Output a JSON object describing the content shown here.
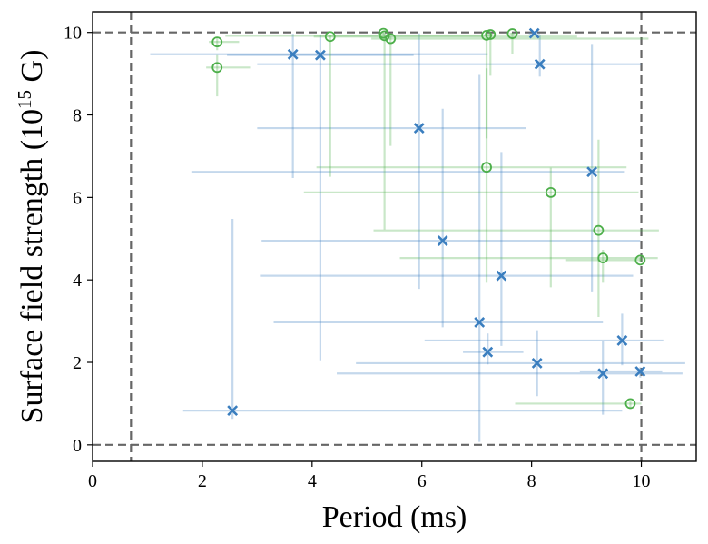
{
  "chart_data": {
    "type": "scatter",
    "xlabel": "Period (ms)",
    "ylabel": {
      "prefix": "Surface field strength (10",
      "superscript": "15",
      "suffix": " G)"
    },
    "xlim": [
      0,
      11
    ],
    "ylim": [
      -0.4,
      10.5
    ],
    "x_ticks": [
      0,
      2,
      4,
      6,
      8,
      10
    ],
    "y_ticks": [
      0,
      2,
      4,
      6,
      8,
      10
    ],
    "grid": false,
    "reference_lines": {
      "vertical": [
        0.7,
        10
      ],
      "horizontal": [
        0,
        10
      ]
    },
    "colors": {
      "blue": "#3a7ebf",
      "green": "#4daf4a",
      "reference": "#666666"
    },
    "series": [
      {
        "name": "blue-x",
        "marker": "x",
        "color": "#3a7ebf",
        "points": [
          {
            "x": 3.65,
            "y": 9.47,
            "xerr": [
              2.6,
              3.55
            ],
            "yerr": [
              3.0,
              0.5
            ]
          },
          {
            "x": 4.15,
            "y": 9.45,
            "xerr": [
              1.7,
              1.7
            ],
            "yerr": [
              7.4,
              0.5
            ]
          },
          {
            "x": 8.05,
            "y": 9.98,
            "xerr": [
              0.1,
              0.1
            ],
            "yerr": [
              0.05,
              0.02
            ]
          },
          {
            "x": 8.15,
            "y": 9.23,
            "xerr": [
              5.15,
              1.85
            ],
            "yerr": [
              0.3,
              0.7
            ]
          },
          {
            "x": 5.95,
            "y": 7.68,
            "xerr": [
              2.95,
              1.95
            ],
            "yerr": [
              3.9,
              2.3
            ]
          },
          {
            "x": 9.1,
            "y": 6.62,
            "xerr": [
              7.3,
              0.6
            ],
            "yerr": [
              2.9,
              3.1
            ]
          },
          {
            "x": 6.38,
            "y": 4.95,
            "xerr": [
              3.3,
              3.6
            ],
            "yerr": [
              2.1,
              3.2
            ]
          },
          {
            "x": 7.45,
            "y": 4.1,
            "xerr": [
              4.4,
              2.4
            ],
            "yerr": [
              1.7,
              3.0
            ]
          },
          {
            "x": 7.05,
            "y": 2.97,
            "xerr": [
              3.75,
              2.25
            ],
            "yerr": [
              2.9,
              6.0
            ]
          },
          {
            "x": 9.65,
            "y": 2.53,
            "xerr": [
              3.6,
              0.75
            ],
            "yerr": [
              0.6,
              0.65
            ]
          },
          {
            "x": 7.2,
            "y": 2.25,
            "xerr": [
              0.45,
              0.65
            ],
            "yerr": [
              0.3,
              0.45
            ]
          },
          {
            "x": 8.1,
            "y": 1.98,
            "xerr": [
              3.3,
              2.7
            ],
            "yerr": [
              0.8,
              0.8
            ]
          },
          {
            "x": 9.3,
            "y": 1.73,
            "xerr": [
              4.85,
              1.45
            ],
            "yerr": [
              1.0,
              0.8
            ]
          },
          {
            "x": 9.98,
            "y": 1.78,
            "xerr": [
              1.1,
              0.4
            ],
            "yerr": [
              0.15,
              0.1
            ]
          },
          {
            "x": 2.55,
            "y": 0.83,
            "xerr": [
              0.9,
              7.1
            ],
            "yerr": [
              0.2,
              4.65
            ]
          }
        ]
      },
      {
        "name": "green-o",
        "marker": "o",
        "color": "#4daf4a",
        "points": [
          {
            "x": 2.27,
            "y": 9.77,
            "xerr": [
              0.15,
              0.4
            ],
            "yerr": [
              0.2,
              0.1
            ]
          },
          {
            "x": 2.27,
            "y": 9.15,
            "xerr": [
              0.2,
              0.6
            ],
            "yerr": [
              0.7,
              0.3
            ]
          },
          {
            "x": 4.33,
            "y": 9.9,
            "xerr": [
              0.3,
              4.5
            ],
            "yerr": [
              3.4,
              0.05
            ]
          },
          {
            "x": 5.3,
            "y": 9.98,
            "xerr": [
              0.05,
              0.05
            ],
            "yerr": [
              0.05,
              0.02
            ]
          },
          {
            "x": 5.32,
            "y": 9.92,
            "xerr": [
              2.9,
              1.8
            ],
            "yerr": [
              4.7,
              0.05
            ]
          },
          {
            "x": 5.43,
            "y": 9.85,
            "xerr": [
              0.35,
              4.7
            ],
            "yerr": [
              2.6,
              0.05
            ]
          },
          {
            "x": 7.18,
            "y": 9.93,
            "xerr": [
              0.05,
              0.1
            ],
            "yerr": [
              2.5,
              0.05
            ]
          },
          {
            "x": 7.25,
            "y": 9.95,
            "xerr": [
              0.1,
              0.05
            ],
            "yerr": [
              1.0,
              0.03
            ]
          },
          {
            "x": 7.65,
            "y": 9.97,
            "xerr": [
              0.05,
              0.05
            ],
            "yerr": [
              0.5,
              0.03
            ]
          },
          {
            "x": 7.18,
            "y": 6.73,
            "xerr": [
              3.1,
              2.55
            ],
            "yerr": [
              2.8,
              2.4
            ]
          },
          {
            "x": 8.35,
            "y": 6.12,
            "xerr": [
              4.5,
              1.6
            ],
            "yerr": [
              2.3,
              0.6
            ]
          },
          {
            "x": 9.22,
            "y": 5.2,
            "xerr": [
              4.1,
              1.1
            ],
            "yerr": [
              2.1,
              2.2
            ]
          },
          {
            "x": 9.3,
            "y": 4.53,
            "xerr": [
              3.7,
              1.0
            ],
            "yerr": [
              0.6,
              0.2
            ]
          },
          {
            "x": 9.98,
            "y": 4.48,
            "xerr": [
              1.35,
              0.05
            ],
            "yerr": [
              0.05,
              0.05
            ]
          },
          {
            "x": 9.8,
            "y": 1.0,
            "xerr": [
              2.1,
              0.2
            ],
            "yerr": [
              0.1,
              0.05
            ]
          }
        ]
      }
    ]
  }
}
